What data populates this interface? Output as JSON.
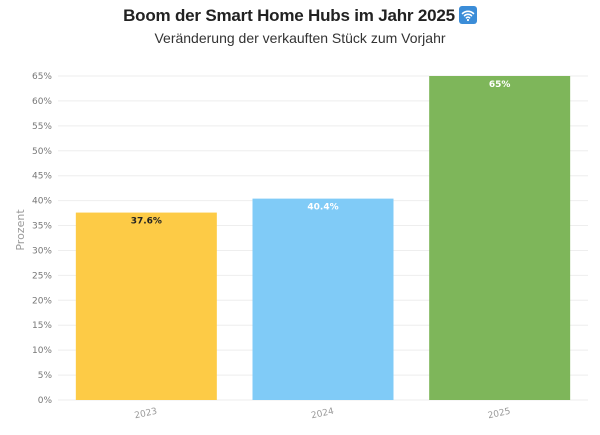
{
  "title": "Boom der Smart Home Hubs im Jahr 2025",
  "subtitle": "Veränderung der verkauften Stück zum Vorjahr",
  "title_icon": "wifi-icon",
  "colors": {
    "bar_2023": "#FDCB46",
    "bar_2024": "#80CBF7",
    "bar_2025": "#7EB65A",
    "grid": "#eeeeee",
    "icon_bg": "#3B8DD8"
  },
  "chart_data": {
    "type": "bar",
    "categories": [
      "2023",
      "2024",
      "2025"
    ],
    "values": [
      37.6,
      40.4,
      65
    ],
    "data_labels": [
      "37.6%",
      "40.4%",
      "65%"
    ],
    "data_label_colors": [
      "#222222",
      "#ffffff",
      "#ffffff"
    ],
    "ylabel": "Prozent",
    "xlabel": "",
    "ylim": [
      0,
      65
    ],
    "yticks": [
      0,
      5,
      10,
      15,
      20,
      25,
      30,
      35,
      40,
      45,
      50,
      55,
      60,
      65
    ],
    "ytick_suffix": "%",
    "grid": true,
    "legend": "none"
  }
}
